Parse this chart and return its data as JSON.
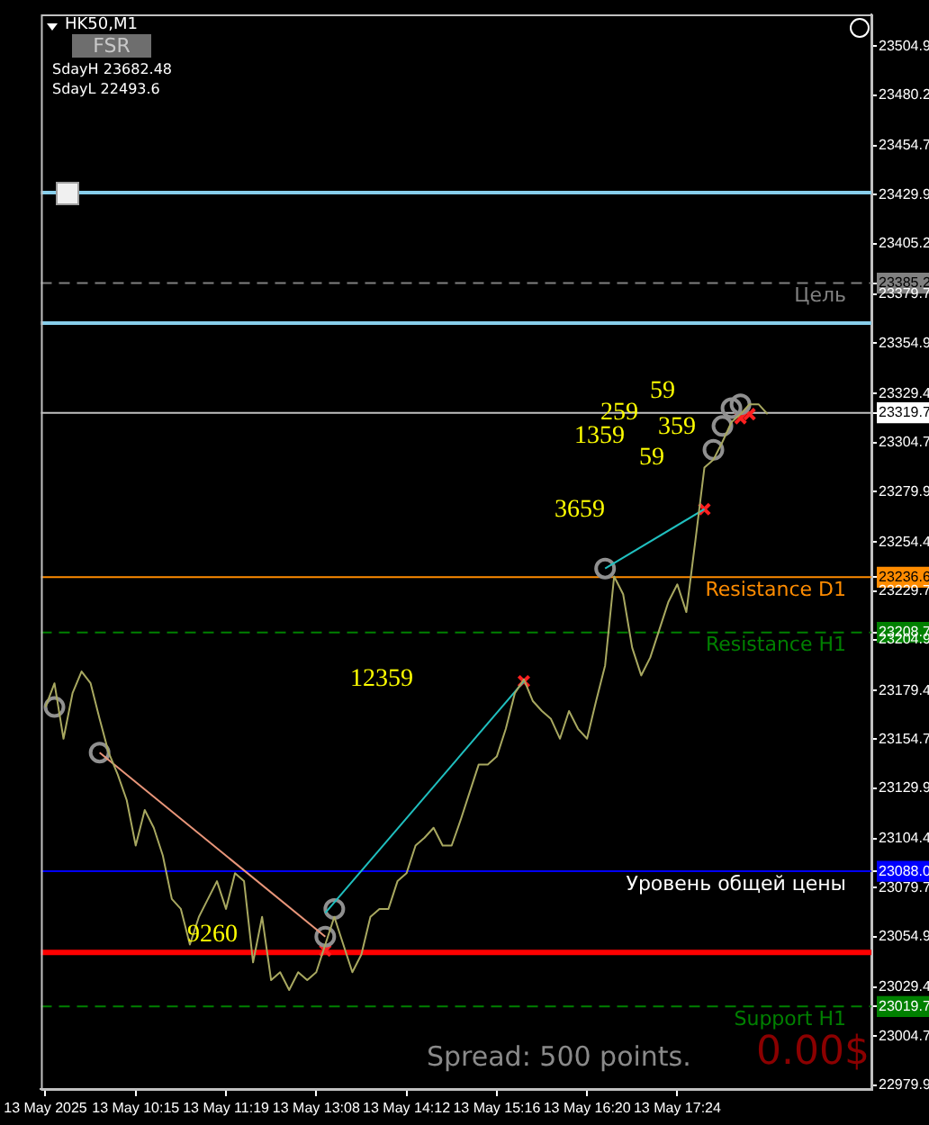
{
  "chart_data": {
    "type": "line",
    "title": "HK50,M1",
    "categories": [
      "13 May 2025",
      null,
      null,
      null,
      null,
      null,
      null,
      null,
      null,
      null,
      "13 May 10:15",
      null,
      null,
      null,
      null,
      null,
      null,
      null,
      null,
      null,
      "13 May 11:19",
      null,
      null,
      null,
      null,
      null,
      null,
      null,
      null,
      null,
      "13 May 13:08",
      null,
      null,
      null,
      null,
      null,
      null,
      null,
      null,
      null,
      "13 May 14:12",
      null,
      null,
      null,
      null,
      null,
      null,
      null,
      null,
      null,
      "13 May 15:16",
      null,
      null,
      null,
      null,
      null,
      null,
      null,
      null,
      null,
      "13 May 16:20",
      null,
      null,
      null,
      null,
      null,
      null,
      null,
      null,
      null,
      "13 May 17:24",
      null,
      null,
      null,
      null,
      null,
      null,
      null,
      null,
      null,
      null,
      null,
      null,
      null,
      null,
      null,
      null,
      null,
      null,
      null,
      null,
      null
    ],
    "series": [
      {
        "color": "#a8a860",
        "values": [
          23171,
          23183,
          23155,
          23178,
          23189,
          23183,
          23165,
          23148,
          23137,
          23124,
          23101,
          23119,
          23110,
          23096,
          23074,
          23069,
          23051,
          23065,
          23074,
          23083,
          23069,
          23087,
          23083,
          23042,
          23065,
          23033,
          23037,
          23028,
          23037,
          23033,
          23037,
          23051,
          23065,
          23051,
          23037,
          23046,
          23065,
          23069,
          23069,
          23083,
          23087,
          23101,
          23105,
          23110,
          23101,
          23101,
          23114,
          23128,
          23142,
          23142,
          23146,
          23160,
          23178,
          23185,
          23174,
          23169,
          23165,
          23155,
          23169,
          23160,
          23155,
          23174,
          23192,
          23237,
          23228,
          23201,
          23187,
          23196,
          23210,
          23224,
          23233,
          23219,
          23255,
          23292,
          23296,
          23305,
          23315,
          23319,
          23324,
          23324,
          23319,
          null,
          null,
          null,
          null,
          null,
          null,
          null,
          null,
          null,
          null,
          null
        ]
      },
      {
        "color": "#e9967a",
        "values": [
          null,
          null,
          null,
          null,
          null,
          null,
          23148,
          null,
          null,
          null,
          null,
          null,
          null,
          null,
          null,
          null,
          null,
          null,
          null,
          null,
          null,
          null,
          null,
          null,
          null,
          null,
          null,
          null,
          null,
          null,
          null,
          23055,
          null,
          null,
          null,
          null,
          null,
          null,
          null,
          null,
          null,
          null,
          null,
          null,
          null,
          null,
          null,
          null,
          null,
          null,
          null,
          null,
          null,
          null,
          null,
          null,
          null,
          null,
          null,
          null,
          null,
          null,
          null,
          null,
          null,
          null,
          null,
          null,
          null,
          null,
          null,
          null,
          null,
          null,
          null,
          null,
          null,
          null,
          null,
          null,
          null,
          null,
          null,
          null,
          null,
          null,
          null,
          null,
          null,
          null,
          null,
          null
        ]
      },
      {
        "color": "#20c0c0",
        "values": [
          null,
          null,
          null,
          null,
          null,
          null,
          null,
          null,
          null,
          null,
          null,
          null,
          null,
          null,
          null,
          null,
          null,
          null,
          null,
          null,
          null,
          null,
          null,
          null,
          null,
          null,
          null,
          null,
          null,
          null,
          null,
          23067,
          null,
          null,
          null,
          null,
          null,
          null,
          null,
          null,
          null,
          null,
          null,
          null,
          null,
          null,
          null,
          null,
          null,
          null,
          null,
          null,
          null,
          23184,
          null,
          null,
          null,
          null,
          null,
          null,
          null,
          null,
          null,
          null,
          null,
          null,
          null,
          null,
          null,
          null,
          null,
          null,
          null,
          null,
          null,
          null,
          null,
          null,
          null,
          null,
          null,
          null,
          null,
          null,
          null,
          null,
          null,
          null,
          null,
          null,
          null,
          null
        ]
      },
      {
        "color": "#20c0c0",
        "values": [
          null,
          null,
          null,
          null,
          null,
          null,
          null,
          null,
          null,
          null,
          null,
          null,
          null,
          null,
          null,
          null,
          null,
          null,
          null,
          null,
          null,
          null,
          null,
          null,
          null,
          null,
          null,
          null,
          null,
          null,
          null,
          null,
          null,
          null,
          null,
          null,
          null,
          null,
          null,
          null,
          null,
          null,
          null,
          null,
          null,
          null,
          null,
          null,
          null,
          null,
          null,
          null,
          null,
          null,
          null,
          null,
          null,
          null,
          null,
          null,
          null,
          null,
          23241,
          null,
          null,
          null,
          null,
          null,
          null,
          null,
          null,
          null,
          null,
          23271,
          null,
          null,
          null,
          null,
          null,
          null,
          null,
          null,
          null,
          null,
          null,
          null,
          null,
          null,
          null,
          null,
          null,
          null
        ]
      },
      {
        "type": "scatter",
        "marker": "circle",
        "color": "#909090",
        "values": [
          null,
          23171,
          null,
          null,
          null,
          null,
          23148,
          null,
          null,
          null,
          null,
          null,
          null,
          null,
          null,
          null,
          null,
          null,
          null,
          null,
          null,
          null,
          null,
          null,
          null,
          null,
          null,
          null,
          null,
          null,
          null,
          23055,
          23069,
          null,
          null,
          null,
          null,
          null,
          null,
          null,
          null,
          null,
          null,
          null,
          null,
          null,
          null,
          null,
          null,
          null,
          null,
          null,
          null,
          null,
          null,
          null,
          null,
          null,
          null,
          null,
          null,
          null,
          23241,
          null,
          null,
          null,
          null,
          null,
          null,
          null,
          null,
          null,
          null,
          null,
          23301,
          23313,
          23322,
          23324,
          null,
          null,
          null,
          null,
          null,
          null,
          null,
          null,
          null,
          null,
          null,
          null,
          null,
          null
        ]
      },
      {
        "type": "scatter",
        "marker": "cross",
        "color": "#ff2020",
        "values": [
          null,
          null,
          null,
          null,
          null,
          null,
          null,
          null,
          null,
          null,
          null,
          null,
          null,
          null,
          null,
          null,
          null,
          null,
          null,
          null,
          null,
          null,
          null,
          null,
          null,
          null,
          null,
          null,
          null,
          null,
          null,
          23048,
          null,
          null,
          null,
          null,
          null,
          null,
          null,
          null,
          null,
          null,
          null,
          null,
          null,
          null,
          null,
          null,
          null,
          null,
          null,
          null,
          null,
          23184,
          null,
          null,
          null,
          null,
          null,
          null,
          null,
          null,
          null,
          null,
          null,
          null,
          null,
          null,
          null,
          null,
          null,
          null,
          null,
          23271,
          null,
          null,
          null,
          23317,
          23319,
          null,
          null,
          null,
          null,
          null,
          null,
          null,
          null,
          null,
          null,
          null,
          null,
          null
        ]
      }
    ],
    "ylim": [
      22978,
      23521
    ],
    "yticks": [
      23504.9,
      23480.2,
      23454.7,
      23429.9,
      23405.2,
      23385.2,
      23379.7,
      23354.9,
      23329.4,
      23319.7,
      23304.7,
      23279.9,
      23254.4,
      23236.6,
      23229.7,
      23208.7,
      23204.9,
      23179.4,
      23154.7,
      23129.9,
      23104.4,
      {
        "value": 23088,
        "label": "23088.0"
      },
      23079.7,
      23054.9,
      23029.4,
      23019.7,
      23004.7,
      22979.9
    ],
    "ref_lines": [
      {
        "axis": "y",
        "value": 23431,
        "color": "#87ceeb"
      },
      {
        "axis": "y",
        "value": 23385.2,
        "label": "Цель",
        "color": "#808080",
        "line_style": "dashed"
      },
      {
        "axis": "y",
        "value": 23365,
        "color": "#87ceeb"
      },
      {
        "axis": "y",
        "value": 23319.7,
        "color": "#c0c0c0"
      },
      {
        "axis": "y",
        "value": 23236.6,
        "label": "Resistance D1",
        "color": "#ff8c00"
      },
      {
        "axis": "y",
        "value": 23208.7,
        "label": "Resistance H1",
        "color": "#008000",
        "line_style": "dashed"
      },
      {
        "axis": "y",
        "value": 23088,
        "label": "Уровень общей цены",
        "color": "#0000ff"
      },
      {
        "axis": "y",
        "value": 23047,
        "color": "#ff0000"
      },
      {
        "axis": "y",
        "value": 23019.7,
        "label": "Support H1",
        "color": "#008000",
        "line_style": "dashed"
      }
    ],
    "annotations": [
      "SdayH 23682.48",
      "SdayL 22493.6",
      "FSR",
      "Spread: 500 points.",
      "0.00$",
      "9260",
      "12359",
      "3659",
      "1359",
      "259",
      "59",
      "359",
      "59"
    ],
    "grid": false,
    "legend": false,
    "marker": "none",
    "line_style": "solid"
  }
}
